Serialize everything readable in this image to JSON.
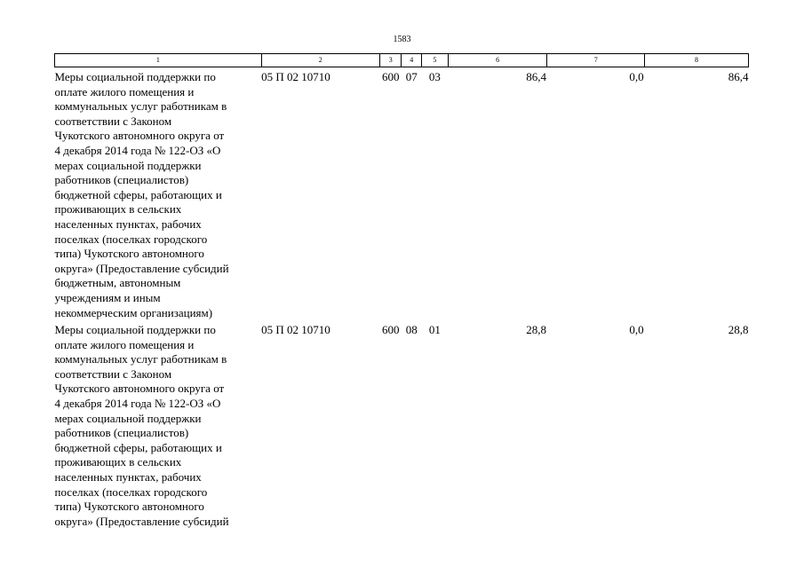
{
  "page_number": "1583",
  "table": {
    "header": [
      "1",
      "2",
      "3",
      "4",
      "5",
      "6",
      "7",
      "8"
    ],
    "rows": [
      {
        "name_lines": [
          "Меры социальной поддержки по",
          "оплате жилого помещения и",
          "коммунальных услуг работникам в",
          "соответствии с Законом",
          "Чукотского автономного округа от",
          "4 декабря 2014 года № 122-ОЗ «О",
          "мерах социальной поддержки",
          "работников (специалистов)",
          "бюджетной сферы, работающих и",
          "проживающих в сельских",
          "населенных пунктах, рабочих",
          "поселках (поселках городского",
          "типа) Чукотского автономного",
          "округа» (Предоставление субсидий",
          "бюджетным, автономным",
          "учреждениям и иным",
          "некоммерческим организациям)"
        ],
        "csr": "05 П 02 10710",
        "vr": "600",
        "rz": "07",
        "pr": "03",
        "v1": "86,4",
        "v2": "0,0",
        "v3": "86,4"
      },
      {
        "name_lines": [
          "Меры социальной поддержки по",
          "оплате жилого помещения и",
          "коммунальных услуг работникам в",
          "соответствии с Законом",
          "Чукотского автономного округа от",
          "4 декабря 2014 года № 122-ОЗ «О",
          "мерах социальной поддержки",
          "работников (специалистов)",
          "бюджетной сферы, работающих и",
          "проживающих в сельских",
          "населенных пунктах, рабочих",
          "поселках (поселках городского",
          "типа) Чукотского автономного",
          "округа» (Предоставление субсидий"
        ],
        "csr": "05 П 02 10710",
        "vr": "600",
        "rz": "08",
        "pr": "01",
        "v1": "28,8",
        "v2": "0,0",
        "v3": "28,8"
      }
    ]
  }
}
